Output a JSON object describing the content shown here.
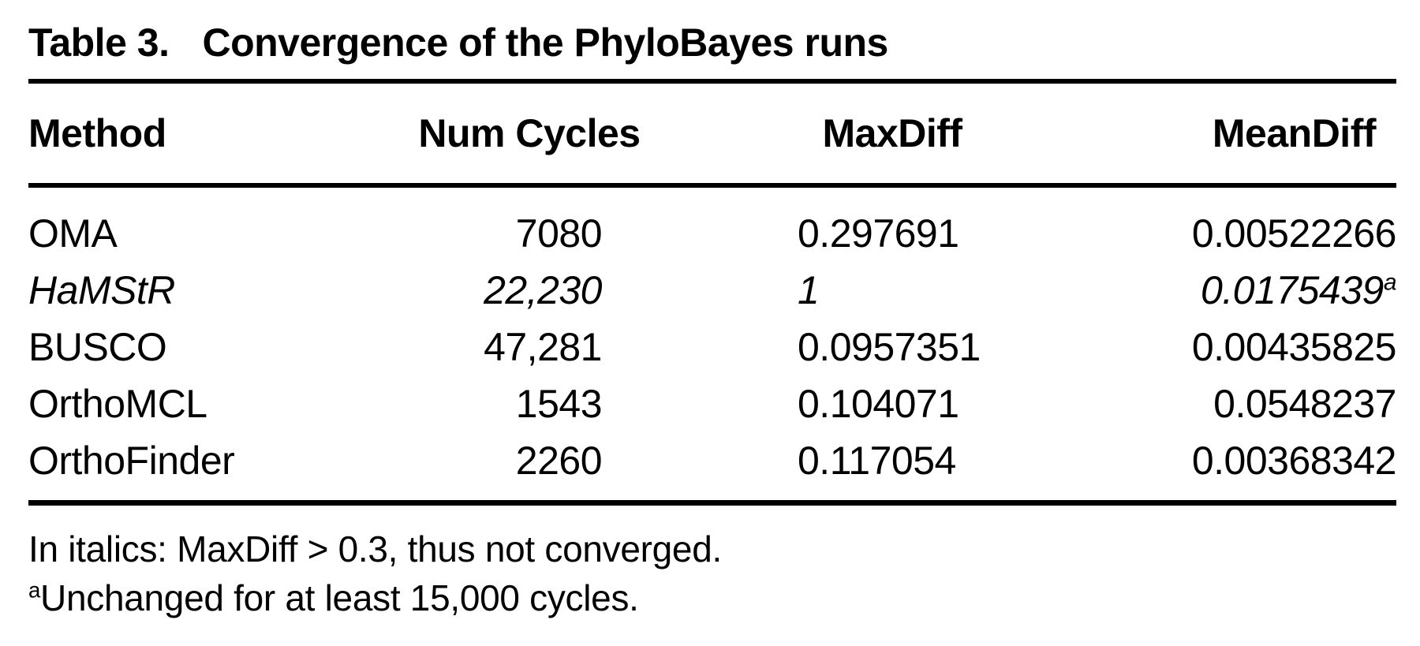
{
  "table": {
    "label": "Table 3.",
    "title": "Convergence of the PhyloBayes runs",
    "columns": [
      "Method",
      "Num Cycles",
      "MaxDiff",
      "MeanDiff"
    ],
    "rows": [
      {
        "method": "OMA",
        "num_cycles": "7080",
        "max_diff": "0.297691",
        "mean_diff": "0.00522266",
        "mean_diff_superscript": "",
        "italic": false
      },
      {
        "method": "HaMStR",
        "num_cycles": "22,230",
        "max_diff": "1",
        "mean_diff": "0.0175439",
        "mean_diff_superscript": "a",
        "italic": true
      },
      {
        "method": "BUSCO",
        "num_cycles": "47,281",
        "max_diff": "0.0957351",
        "mean_diff": "0.00435825",
        "mean_diff_superscript": "",
        "italic": false
      },
      {
        "method": "OrthoMCL",
        "num_cycles": "1543",
        "max_diff": "0.104071",
        "mean_diff": "0.0548237",
        "mean_diff_superscript": "",
        "italic": false
      },
      {
        "method": "OrthoFinder",
        "num_cycles": "2260",
        "max_diff": "0.117054",
        "mean_diff": "0.00368342",
        "mean_diff_superscript": "",
        "italic": false
      }
    ],
    "footnotes": [
      {
        "marker": "",
        "text": "In italics: MaxDiff > 0.3, thus not converged."
      },
      {
        "marker": "a",
        "text": "Unchanged for at least 15,000 cycles."
      }
    ]
  },
  "colors": {
    "text": "#000000",
    "background": "#ffffff",
    "rule": "#000000"
  }
}
